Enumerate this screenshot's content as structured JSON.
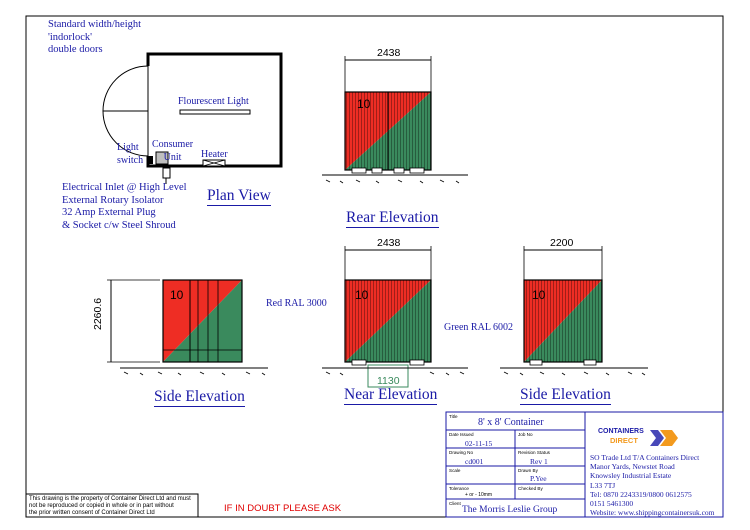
{
  "notes": {
    "doors": "Standard width/height\n'indorlock'\ndouble doors",
    "electrical": "Electrical Inlet @ High Level\nExternal Rotary Isolator\n32 Amp External Plug\n& Socket c/w Steel Shroud"
  },
  "plan": {
    "light_label": "Flourescent Light",
    "light_switch_label": "Light\nswitch",
    "consumer_label": "Consumer\nUnit",
    "heater_label": "Heater",
    "title": "Plan View"
  },
  "elevations": {
    "rear_title": "Rear Elevation",
    "side_left_title": "Side Elevation",
    "near_title": "Near Elevation",
    "side_right_title": "Side Elevation",
    "rear_width": "2438",
    "near_width": "2438",
    "side_width": "2200",
    "height": "2260.6",
    "door_width": "1130",
    "panel_number": "10",
    "red_label": "Red RAL 3000",
    "green_label": "Green RAL 6002"
  },
  "colors": {
    "red": "#ee2d24",
    "green": "#3a8a5d",
    "label_blue": "#1a1aa6"
  },
  "footer": {
    "legal": "This drawing is the property of Container Direct Ltd and must\nnot be reproduced or copied in whole or in part without\nthe prior written consent of Container Direct Ltd",
    "ask": "IF IN DOUBT PLEASE ASK"
  },
  "title_block": {
    "title_label": "Title",
    "title": "8' x 8' Container",
    "date_label": "Date Issued",
    "date": "02-11-15",
    "job_label": "Job No",
    "drawing_label": "Drawing No",
    "drawing": "cd001",
    "revision_label": "Revision Status",
    "revision": "Rev 1",
    "scale_label": "Scale",
    "drawn_label": "Drawn By",
    "drawn": "P.Yee",
    "tolerance_label": "Tolerance",
    "tolerance": "+ or - 10mm",
    "checked_label": "Checked By",
    "client_label": "Client",
    "client": "The Morris Leslie Group",
    "logo_top": "CONTAINERS",
    "logo_bottom": "DIRECT",
    "company": "SO Trade Ltd T/A Containers Direct\nManor Yards, Newstet Road\nKnowsley Industrial Estate\nL33 7TJ\nTel: 0870 2243319/0800 0612575\n0151 5461300\nWebsite: www.shippingcontainersuk.com"
  }
}
